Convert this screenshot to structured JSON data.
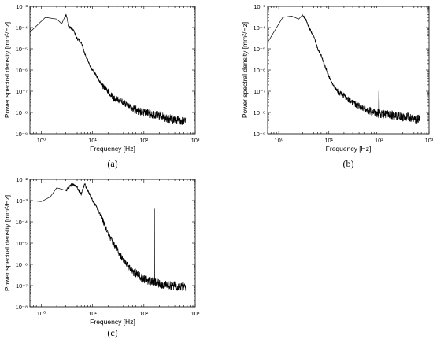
{
  "figure": {
    "panels": [
      {
        "id": "a",
        "label": "(a)"
      },
      {
        "id": "b",
        "label": "(b)"
      },
      {
        "id": "c",
        "label": "(c)"
      }
    ]
  },
  "chart_data": [
    {
      "type": "line",
      "panel": "(a)",
      "xlabel": "Frequency [Hz]",
      "ylabel": "Power spectral density [mm²/Hz]",
      "xscale": "log",
      "yscale": "log",
      "xlim": [
        0.6,
        1000
      ],
      "ylim": [
        1e-09,
        0.001
      ],
      "xticks": [
        {
          "value": 1,
          "label": "10⁰"
        },
        {
          "value": 10,
          "label": "10¹"
        },
        {
          "value": 100,
          "label": "10²"
        },
        {
          "value": 1000,
          "label": "10³"
        }
      ],
      "yticks": [
        {
          "value": 1e-09,
          "label": "10⁻⁹"
        },
        {
          "value": 1e-08,
          "label": "10⁻⁸"
        },
        {
          "value": 1e-07,
          "label": "10⁻⁷"
        },
        {
          "value": 1e-06,
          "label": "10⁻⁶"
        },
        {
          "value": 1e-05,
          "label": "10⁻⁵"
        },
        {
          "value": 0.0001,
          "label": "10⁻⁴"
        },
        {
          "value": 0.001,
          "label": "10⁻³"
        }
      ],
      "grid": false,
      "line_color": "#000000",
      "series": [
        {
          "x": [
            0.6,
            1.2,
            2.0,
            2.5,
            3.0,
            3.6,
            4.2,
            5.0,
            6.0,
            7.0,
            8.0,
            9.0,
            10,
            12,
            15,
            20,
            25,
            30,
            40,
            50,
            60,
            80,
            100,
            150,
            200,
            300,
            400,
            500,
            650
          ],
          "y": [
            6e-05,
            0.0003,
            0.00025,
            0.00015,
            0.0004,
            0.0001,
            8e-05,
            3e-05,
            2e-05,
            6e-06,
            3e-06,
            1.5e-06,
            1e-06,
            5e-07,
            2e-07,
            1e-07,
            5e-08,
            4e-08,
            3e-08,
            2e-08,
            1.5e-08,
            1.2e-08,
            1e-08,
            8e-09,
            7e-09,
            5e-09,
            5e-09,
            4e-09,
            4e-09
          ]
        }
      ]
    },
    {
      "type": "line",
      "panel": "(b)",
      "xlabel": "Frequency [Hz]",
      "ylabel": "Power spectral density [mm²/Hz]",
      "xscale": "log",
      "yscale": "log",
      "xlim": [
        0.6,
        1000
      ],
      "ylim": [
        1e-09,
        0.001
      ],
      "xticks": [
        {
          "value": 1,
          "label": "10⁰"
        },
        {
          "value": 10,
          "label": "10¹"
        },
        {
          "value": 100,
          "label": "10²"
        },
        {
          "value": 1000,
          "label": "10³"
        }
      ],
      "yticks": [
        {
          "value": 1e-09,
          "label": "10⁻⁹"
        },
        {
          "value": 1e-08,
          "label": "10⁻⁸"
        },
        {
          "value": 1e-07,
          "label": "10⁻⁷"
        },
        {
          "value": 1e-06,
          "label": "10⁻⁶"
        },
        {
          "value": 1e-05,
          "label": "10⁻⁵"
        },
        {
          "value": 0.0001,
          "label": "10⁻⁴"
        },
        {
          "value": 0.001,
          "label": "10⁻³"
        }
      ],
      "grid": false,
      "line_color": "#000000",
      "series": [
        {
          "x": [
            0.6,
            1.2,
            1.8,
            2.5,
            3.0,
            3.6,
            4.2,
            5.0,
            6.0,
            7.0,
            8.0,
            9.0,
            10,
            12,
            15,
            20,
            25,
            30,
            40,
            50,
            60,
            80,
            100,
            150,
            200,
            300,
            400,
            500,
            650
          ],
          "y": [
            2e-05,
            0.0003,
            0.00035,
            0.00025,
            0.0004,
            0.0002,
            8e-05,
            4e-05,
            1e-05,
            5e-06,
            2e-06,
            1e-06,
            5e-07,
            2e-07,
            1e-07,
            6e-08,
            4e-08,
            3e-08,
            2e-08,
            1.5e-08,
            1.2e-08,
            1e-08,
            9e-09,
            8e-09,
            7e-09,
            6e-09,
            6e-09,
            5e-09,
            5e-09
          ]
        }
      ],
      "spikes": [
        {
          "x": 100,
          "y": 1e-07
        }
      ]
    },
    {
      "type": "line",
      "panel": "(c)",
      "xlabel": "Frequency [Hz]",
      "ylabel": "Power spectral density [mm²/Hz]",
      "xscale": "log",
      "yscale": "log",
      "xlim": [
        0.6,
        1000
      ],
      "ylim": [
        1e-08,
        0.01
      ],
      "xticks": [
        {
          "value": 1,
          "label": "10⁰"
        },
        {
          "value": 10,
          "label": "10¹"
        },
        {
          "value": 100,
          "label": "10²"
        },
        {
          "value": 1000,
          "label": "10³"
        }
      ],
      "yticks": [
        {
          "value": 1e-08,
          "label": "10⁻⁸"
        },
        {
          "value": 1e-07,
          "label": "10⁻⁷"
        },
        {
          "value": 1e-06,
          "label": "10⁻⁶"
        },
        {
          "value": 1e-05,
          "label": "10⁻⁵"
        },
        {
          "value": 0.0001,
          "label": "10⁻⁴"
        },
        {
          "value": 0.001,
          "label": "10⁻³"
        },
        {
          "value": 0.01,
          "label": "10⁻²"
        }
      ],
      "grid": false,
      "line_color": "#000000",
      "series": [
        {
          "x": [
            0.6,
            1.0,
            1.5,
            2.0,
            3.0,
            4.0,
            5.0,
            6.0,
            7.0,
            8.0,
            10,
            12,
            15,
            20,
            25,
            30,
            40,
            50,
            60,
            80,
            100,
            150,
            200,
            300,
            400,
            500,
            650
          ],
          "y": [
            0.001,
            0.0009,
            0.0015,
            0.004,
            0.003,
            0.006,
            0.004,
            0.002,
            0.006,
            0.003,
            0.001,
            0.0005,
            0.00015,
            3e-05,
            1e-05,
            5e-06,
            1.5e-06,
            8e-07,
            5e-07,
            3e-07,
            2e-07,
            1.5e-07,
            1.2e-07,
            1e-07,
            1e-07,
            9e-08,
            9e-08
          ]
        }
      ],
      "spikes": [
        {
          "x": 160,
          "y": 0.0004
        }
      ]
    }
  ]
}
